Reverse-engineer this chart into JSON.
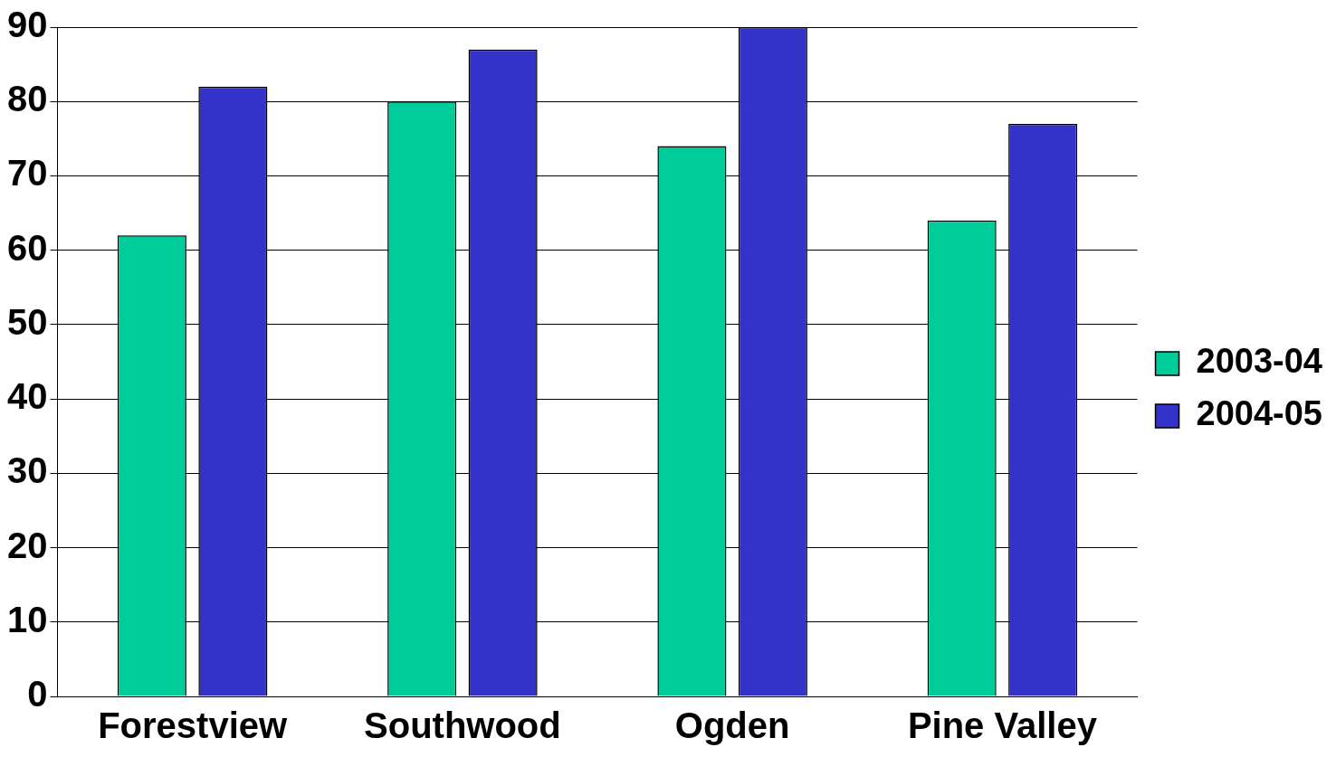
{
  "chart_data": {
    "type": "bar",
    "categories": [
      "Forestview",
      "Southwood",
      "Ogden",
      "Pine Valley"
    ],
    "series": [
      {
        "name": "2003-04",
        "color": "#00cc99",
        "values": [
          62,
          80,
          74,
          64
        ]
      },
      {
        "name": "2004-05",
        "color": "#3333cc",
        "values": [
          82,
          87,
          90,
          77
        ]
      }
    ],
    "ylim": [
      0,
      90
    ],
    "yticks": [
      0,
      10,
      20,
      30,
      40,
      50,
      60,
      70,
      80,
      90
    ],
    "grid": "y",
    "legend": "right"
  }
}
